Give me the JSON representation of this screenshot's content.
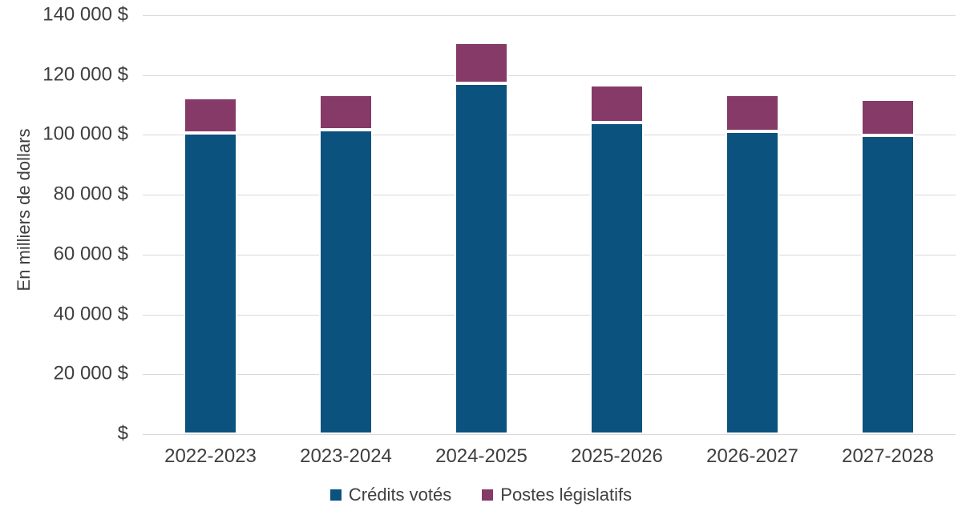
{
  "chart_data": {
    "type": "bar",
    "stacked": true,
    "title": "",
    "xlabel": "",
    "ylabel": "En milliers de dollars",
    "categories": [
      "2022-2023",
      "2023-2024",
      "2024-2025",
      "2025-2026",
      "2026-2027",
      "2027-2028"
    ],
    "series": [
      {
        "name": "Crédits votés",
        "color": "#0B527E",
        "values": [
          100600,
          101600,
          117300,
          104200,
          101300,
          99900
        ]
      },
      {
        "name": "Postes législatifs",
        "color": "#863A68",
        "values": [
          11800,
          11900,
          13600,
          12500,
          12200,
          12000
        ]
      }
    ],
    "totals": [
      112400,
      113500,
      130900,
      116700,
      113500,
      111900
    ],
    "ylim": [
      0,
      140000
    ],
    "ytick_step": 20000,
    "ytick_labels": [
      "$",
      "20 000 $",
      "40 000 $",
      "60 000 $",
      "80 000 $",
      "100 000 $",
      "120 000 $",
      "140 000 $"
    ],
    "grid": true,
    "legend_position": "bottom"
  },
  "colors": {
    "background": "#FFFFFF",
    "gridline": "#D9D9D9",
    "text": "#3F3F3F",
    "segment_border": "#FFFFFF",
    "series_blue": "#0B527E",
    "series_purple": "#863A68"
  }
}
